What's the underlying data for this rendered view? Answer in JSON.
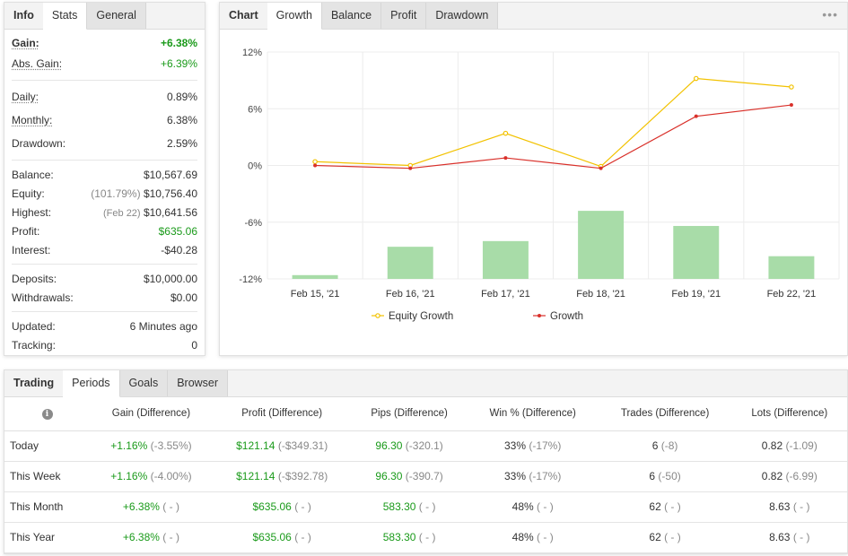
{
  "info": {
    "tabs": [
      "Info",
      "Stats",
      "General"
    ],
    "gain": {
      "label": "Gain:",
      "value": "+6.38%"
    },
    "abs_gain": {
      "label": "Abs. Gain:",
      "value": "+6.39%"
    },
    "daily": {
      "label": "Daily:",
      "value": "0.89%"
    },
    "monthly": {
      "label": "Monthly:",
      "value": "6.38%"
    },
    "drawdown": {
      "label": "Drawdown:",
      "value": "2.59%"
    },
    "balance": {
      "label": "Balance:",
      "value": "$10,567.69"
    },
    "equity": {
      "label": "Equity:",
      "note": "(101.79%)",
      "value": "$10,756.40"
    },
    "highest": {
      "label": "Highest:",
      "note": "(Feb 22)",
      "value": "$10,641.56"
    },
    "profit": {
      "label": "Profit:",
      "value": "$635.06"
    },
    "interest": {
      "label": "Interest:",
      "value": "-$40.28"
    },
    "deposits": {
      "label": "Deposits:",
      "value": "$10,000.00"
    },
    "withdrawals": {
      "label": "Withdrawals:",
      "value": "$0.00"
    },
    "updated": {
      "label": "Updated:",
      "value": "6 Minutes ago"
    },
    "tracking": {
      "label": "Tracking:",
      "value": "0"
    }
  },
  "chart_panel": {
    "tabs": [
      "Chart",
      "Growth",
      "Balance",
      "Profit",
      "Drawdown"
    ],
    "menu_glyph": "•••"
  },
  "chart_data": {
    "type": "line",
    "categories": [
      "Feb 15, '21",
      "Feb 16, '21",
      "Feb 17, '21",
      "Feb 18, '21",
      "Feb 19, '21",
      "Feb 22, '21"
    ],
    "y_ticks": [
      "12%",
      "6%",
      "0%",
      "-6%",
      "-12%"
    ],
    "ylim": [
      -12,
      12
    ],
    "series": [
      {
        "name": "Equity Growth",
        "type": "line",
        "color": "#f2c200",
        "values": [
          0.4,
          0.0,
          3.4,
          -0.1,
          9.2,
          8.3
        ]
      },
      {
        "name": "Growth",
        "type": "line",
        "color": "#d9302a",
        "values": [
          0.0,
          -0.3,
          0.8,
          -0.3,
          5.2,
          6.4
        ]
      }
    ],
    "bars": {
      "color": "#a8dca8",
      "values": [
        0.2,
        1.7,
        2.0,
        3.6,
        2.8,
        1.2
      ]
    },
    "grid": true,
    "legend": "bottom"
  },
  "periods": {
    "tabs": [
      "Trading",
      "Periods",
      "Goals",
      "Browser"
    ],
    "info_glyph": "i",
    "columns": [
      "Gain (Difference)",
      "Profit (Difference)",
      "Pips (Difference)",
      "Win % (Difference)",
      "Trades (Difference)",
      "Lots (Difference)"
    ],
    "rows": [
      {
        "name": "Today",
        "gain": "+1.16%",
        "gain_d": "(-3.55%)",
        "profit": "$121.14",
        "profit_d": "(-$349.31)",
        "pips": "96.30",
        "pips_d": "(-320.1)",
        "win": "33%",
        "win_d": "(-17%)",
        "trades": "6",
        "trades_d": "(-8)",
        "lots": "0.82",
        "lots_d": "(-1.09)"
      },
      {
        "name": "This Week",
        "gain": "+1.16%",
        "gain_d": "(-4.00%)",
        "profit": "$121.14",
        "profit_d": "(-$392.78)",
        "pips": "96.30",
        "pips_d": "(-390.7)",
        "win": "33%",
        "win_d": "(-17%)",
        "trades": "6",
        "trades_d": "(-50)",
        "lots": "0.82",
        "lots_d": "(-6.99)"
      },
      {
        "name": "This Month",
        "gain": "+6.38%",
        "gain_d": "( - )",
        "profit": "$635.06",
        "profit_d": "( - )",
        "pips": "583.30",
        "pips_d": "( - )",
        "win": "48%",
        "win_d": "( - )",
        "trades": "62",
        "trades_d": "( - )",
        "lots": "8.63",
        "lots_d": "( - )"
      },
      {
        "name": "This Year",
        "gain": "+6.38%",
        "gain_d": "( - )",
        "profit": "$635.06",
        "profit_d": "( - )",
        "pips": "583.30",
        "pips_d": "( - )",
        "win": "48%",
        "win_d": "( - )",
        "trades": "62",
        "trades_d": "( - )",
        "lots": "8.63",
        "lots_d": "( - )"
      }
    ]
  }
}
